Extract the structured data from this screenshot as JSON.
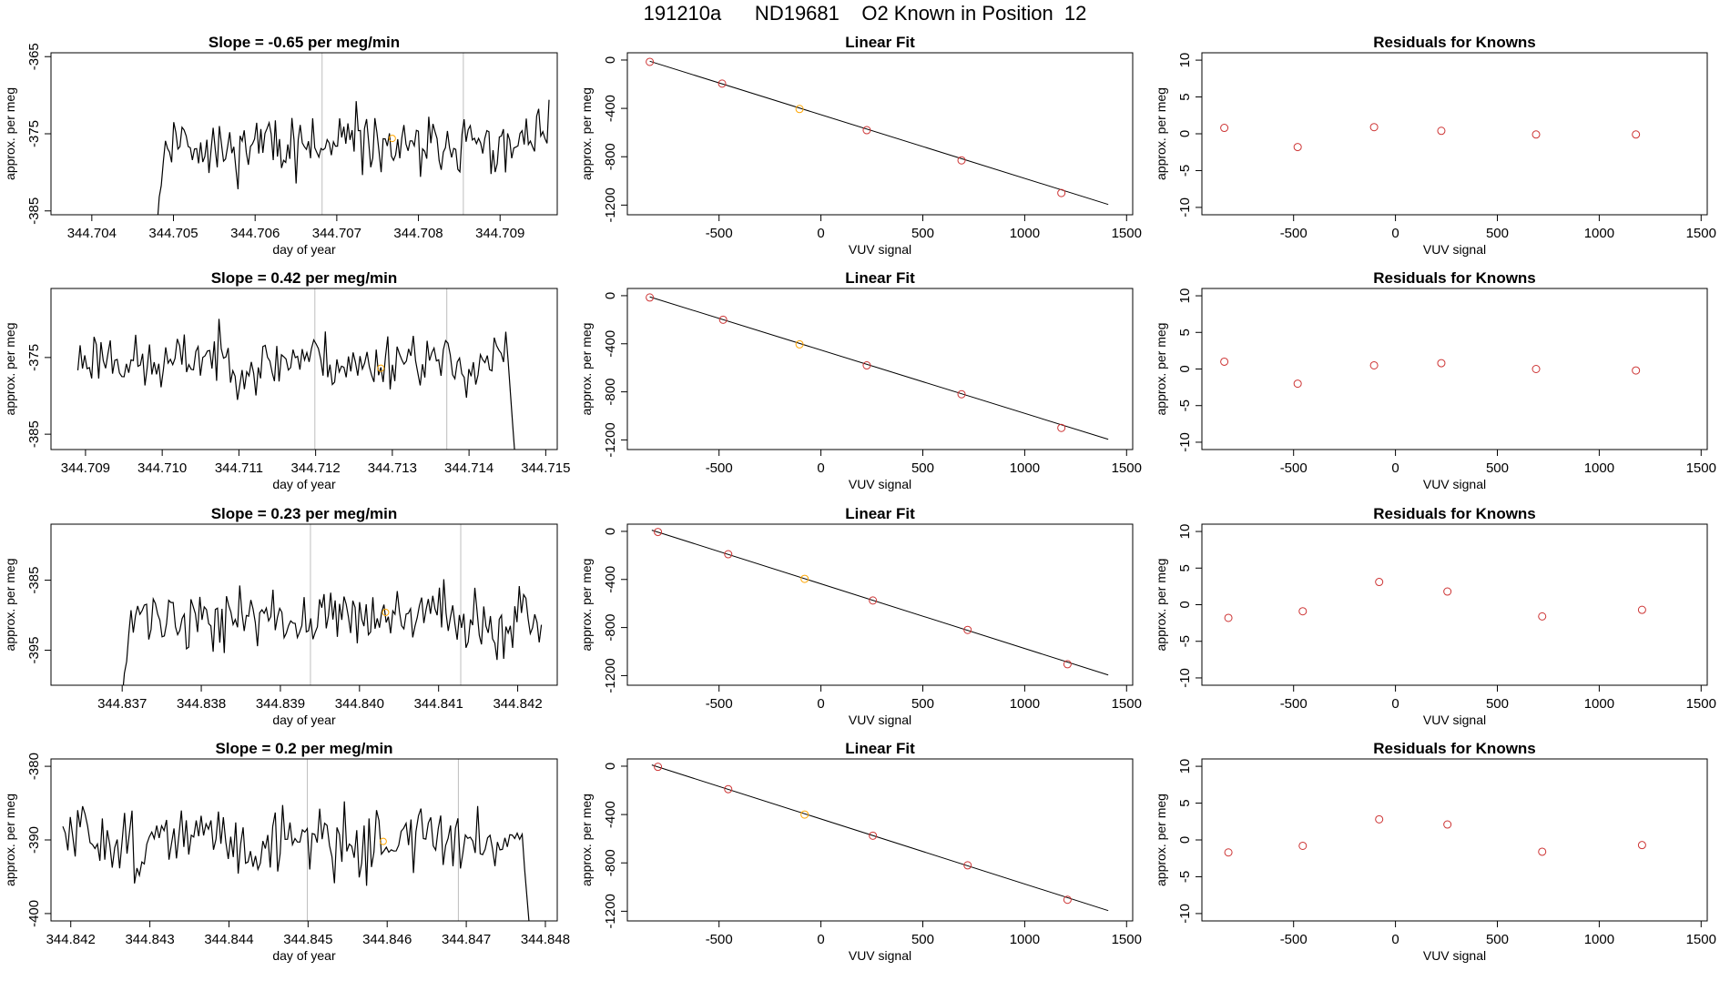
{
  "header": {
    "title": "191210a      ND19681    O2 Known in Position  12"
  },
  "colors": {
    "trace": "#000000",
    "known_marker": "#FFA500",
    "residual_marker": "#CD3333",
    "fit_marker": "#CD3333",
    "vline": "#BEBEBE"
  },
  "chart_data": [
    {
      "type": "line",
      "panel": "timeseries",
      "row": 0,
      "title": "Slope =  -0.65  per meg/min",
      "xlabel": "day of year",
      "ylabel": "approx. per meg",
      "xlim": [
        344.7035,
        344.7097
      ],
      "ylim": [
        -385.5,
        -364.5
      ],
      "xticks": [
        "344.704",
        "344.705",
        "344.706",
        "344.707",
        "344.708",
        "344.709"
      ],
      "yticks": [
        "-365",
        "-375",
        "-385"
      ],
      "x_start": 344.7048,
      "x_end": 344.7096,
      "base": -376.5,
      "amp": 3.2,
      "seed": 11,
      "lead_from": -386,
      "vlines": [
        344.70682,
        344.70855
      ],
      "marker": [
        344.70768,
        -375.6
      ]
    },
    {
      "type": "scatter",
      "panel": "linear-fit",
      "row": 0,
      "title": "Linear Fit",
      "xlabel": "VUV signal",
      "ylabel": "approx. per meg",
      "xlim": [
        -950,
        1530
      ],
      "ylim": [
        -1280,
        60
      ],
      "xticks": [
        "-500",
        "0",
        "500",
        "1000",
        "1500"
      ],
      "yticks": [
        "0",
        "-400",
        "-800",
        "-1200"
      ],
      "points": [
        [
          -840,
          -15
        ],
        [
          -485,
          -195
        ],
        [
          -105,
          -405
        ],
        [
          225,
          -580
        ],
        [
          690,
          -830
        ],
        [
          1180,
          -1100
        ]
      ],
      "known_index": 2,
      "fit_line": [
        [
          -840,
          -10
        ],
        [
          1410,
          -1195
        ]
      ]
    },
    {
      "type": "scatter",
      "panel": "residuals",
      "row": 0,
      "title": "Residuals for Knowns",
      "xlabel": "VUV signal",
      "ylabel": "approx. per meg",
      "xlim": [
        -950,
        1530
      ],
      "ylim": [
        -11,
        11
      ],
      "xticks": [
        "-500",
        "0",
        "500",
        "1000",
        "1500"
      ],
      "yticks": [
        "10",
        "5",
        "0",
        "-5",
        "-10"
      ],
      "points": [
        [
          -840,
          0.8
        ],
        [
          -480,
          -1.8
        ],
        [
          -105,
          0.9
        ],
        [
          225,
          0.4
        ],
        [
          690,
          -0.1
        ],
        [
          1180,
          -0.1
        ]
      ]
    },
    {
      "type": "line",
      "panel": "timeseries",
      "row": 1,
      "title": "Slope =  0.42  per meg/min",
      "xlabel": "day of year",
      "ylabel": "approx. per meg",
      "xlim": [
        344.70855,
        344.71515
      ],
      "ylim": [
        -387,
        -366
      ],
      "xticks": [
        "344.709",
        "344.710",
        "344.711",
        "344.712",
        "344.713",
        "344.714",
        "344.715"
      ],
      "yticks": [
        "-375",
        "-385"
      ],
      "x_start": 344.7089,
      "x_end": 344.7146,
      "base": -375.5,
      "amp": 3.0,
      "seed": 23,
      "tail_to": -388,
      "vlines": [
        344.71199,
        344.71371
      ],
      "marker": [
        344.71285,
        -376.4
      ]
    },
    {
      "type": "scatter",
      "panel": "linear-fit",
      "row": 1,
      "title": "Linear Fit",
      "xlabel": "VUV signal",
      "ylabel": "approx. per meg",
      "xlim": [
        -950,
        1530
      ],
      "ylim": [
        -1280,
        60
      ],
      "xticks": [
        "-500",
        "0",
        "500",
        "1000",
        "1500"
      ],
      "yticks": [
        "0",
        "-400",
        "-800",
        "-1200"
      ],
      "points": [
        [
          -840,
          -15
        ],
        [
          -480,
          -200
        ],
        [
          -105,
          -405
        ],
        [
          225,
          -580
        ],
        [
          690,
          -820
        ],
        [
          1180,
          -1100
        ]
      ],
      "known_index": 2,
      "fit_line": [
        [
          -840,
          -10
        ],
        [
          1410,
          -1195
        ]
      ]
    },
    {
      "type": "scatter",
      "panel": "residuals",
      "row": 1,
      "title": "Residuals for Knowns",
      "xlabel": "VUV signal",
      "ylabel": "approx. per meg",
      "xlim": [
        -950,
        1530
      ],
      "ylim": [
        -11,
        11
      ],
      "xticks": [
        "-500",
        "0",
        "500",
        "1000",
        "1500"
      ],
      "yticks": [
        "10",
        "5",
        "0",
        "-5",
        "-10"
      ],
      "points": [
        [
          -840,
          1.0
        ],
        [
          -480,
          -2.0
        ],
        [
          -105,
          0.5
        ],
        [
          225,
          0.8
        ],
        [
          690,
          0.0
        ],
        [
          1180,
          -0.2
        ]
      ]
    },
    {
      "type": "line",
      "panel": "timeseries",
      "row": 2,
      "title": "Slope =  0.23  per meg/min",
      "xlabel": "day of year",
      "ylabel": "approx. per meg",
      "xlim": [
        344.8361,
        344.8425
      ],
      "ylim": [
        -400,
        -377
      ],
      "xticks": [
        "344.837",
        "344.838",
        "344.839",
        "344.840",
        "344.841",
        "344.842"
      ],
      "yticks": [
        "-385",
        "-395"
      ],
      "x_start": 344.837,
      "x_end": 344.8423,
      "base": -390.5,
      "amp": 3.6,
      "seed": 37,
      "lead_from": -401,
      "vlines": [
        344.83938,
        344.84128
      ],
      "marker": [
        344.84033,
        -389.6
      ]
    },
    {
      "type": "scatter",
      "panel": "linear-fit",
      "row": 2,
      "title": "Linear Fit",
      "xlabel": "VUV signal",
      "ylabel": "approx. per meg",
      "xlim": [
        -950,
        1530
      ],
      "ylim": [
        -1280,
        60
      ],
      "xticks": [
        "-500",
        "0",
        "500",
        "1000",
        "1500"
      ],
      "yticks": [
        "0",
        "-400",
        "-800",
        "-1200"
      ],
      "points": [
        [
          -800,
          -5
        ],
        [
          -455,
          -190
        ],
        [
          -80,
          -395
        ],
        [
          255,
          -575
        ],
        [
          720,
          -820
        ],
        [
          1210,
          -1105
        ]
      ],
      "known_index": 2,
      "fit_line": [
        [
          -830,
          10
        ],
        [
          1410,
          -1195
        ]
      ]
    },
    {
      "type": "scatter",
      "panel": "residuals",
      "row": 2,
      "title": "Residuals for Knowns",
      "xlabel": "VUV signal",
      "ylabel": "approx. per meg",
      "xlim": [
        -950,
        1530
      ],
      "ylim": [
        -11,
        11
      ],
      "xticks": [
        "-500",
        "0",
        "500",
        "1000",
        "1500"
      ],
      "yticks": [
        "10",
        "5",
        "0",
        "-5",
        "-10"
      ],
      "points": [
        [
          -820,
          -1.8
        ],
        [
          -455,
          -0.9
        ],
        [
          -80,
          3.1
        ],
        [
          255,
          1.8
        ],
        [
          720,
          -1.6
        ],
        [
          1210,
          -0.7
        ]
      ]
    },
    {
      "type": "line",
      "panel": "timeseries",
      "row": 3,
      "title": "Slope =  0.2  per meg/min",
      "xlabel": "day of year",
      "ylabel": "approx. per meg",
      "xlim": [
        344.84175,
        344.84815
      ],
      "ylim": [
        -401,
        -379
      ],
      "xticks": [
        "344.842",
        "344.843",
        "344.844",
        "344.845",
        "344.846",
        "344.847",
        "344.848"
      ],
      "yticks": [
        "-380",
        "-390",
        "-400"
      ],
      "x_start": 344.8419,
      "x_end": 344.8478,
      "base": -390.0,
      "amp": 3.8,
      "seed": 51,
      "tail_to": -402,
      "vlines": [
        344.84499,
        344.8469
      ],
      "marker": [
        344.84595,
        -390.2
      ]
    },
    {
      "type": "scatter",
      "panel": "linear-fit",
      "row": 3,
      "title": "Linear Fit",
      "xlabel": "VUV signal",
      "ylabel": "approx. per meg",
      "xlim": [
        -950,
        1530
      ],
      "ylim": [
        -1280,
        60
      ],
      "xticks": [
        "-500",
        "0",
        "500",
        "1000",
        "1500"
      ],
      "yticks": [
        "0",
        "-400",
        "-800",
        "-1200"
      ],
      "points": [
        [
          -800,
          -5
        ],
        [
          -455,
          -190
        ],
        [
          -80,
          -400
        ],
        [
          255,
          -575
        ],
        [
          720,
          -820
        ],
        [
          1210,
          -1105
        ]
      ],
      "known_index": 2,
      "fit_line": [
        [
          -830,
          10
        ],
        [
          1410,
          -1195
        ]
      ]
    },
    {
      "type": "scatter",
      "panel": "residuals",
      "row": 3,
      "title": "Residuals for Knowns",
      "xlabel": "VUV signal",
      "ylabel": "approx. per meg",
      "xlim": [
        -950,
        1530
      ],
      "ylim": [
        -11,
        11
      ],
      "xticks": [
        "-500",
        "0",
        "500",
        "1000",
        "1500"
      ],
      "yticks": [
        "10",
        "5",
        "0",
        "-5",
        "-10"
      ],
      "points": [
        [
          -820,
          -1.7
        ],
        [
          -455,
          -0.8
        ],
        [
          -80,
          2.8
        ],
        [
          255,
          2.1
        ],
        [
          720,
          -1.6
        ],
        [
          1210,
          -0.7
        ]
      ]
    }
  ]
}
